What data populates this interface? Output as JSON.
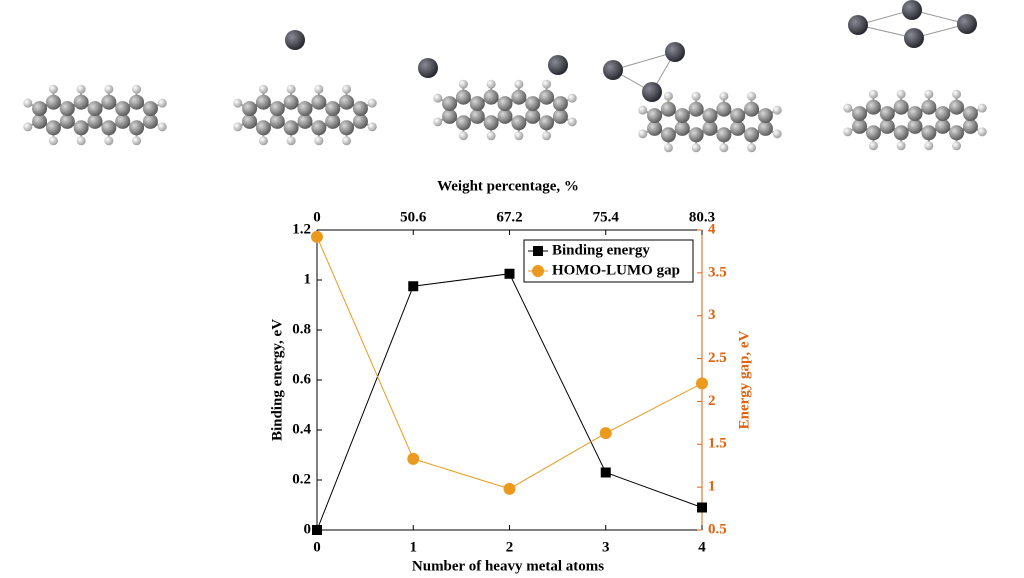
{
  "chart_data": {
    "type": "line",
    "x_label": "Number of heavy metal atoms",
    "x2_label": "Weight percentage, %",
    "y_label": "Binding energy, eV",
    "y2_label": "Energy gap, eV",
    "x": [
      0,
      1,
      2,
      3,
      4
    ],
    "xlim": [
      0,
      4
    ],
    "xticks": [
      0,
      1,
      2,
      3,
      4
    ],
    "x2ticks": [
      {
        "value": 0,
        "label": "0"
      },
      {
        "value": 1,
        "label": "50.6"
      },
      {
        "value": 2,
        "label": "67.2"
      },
      {
        "value": 3,
        "label": "75.4"
      },
      {
        "value": 4,
        "label": "80.3"
      }
    ],
    "ylim": [
      0,
      1.2
    ],
    "yticks": [
      0,
      0.2,
      0.4,
      0.6,
      0.8,
      1,
      1.2
    ],
    "y2lim": [
      0.5,
      4
    ],
    "y2ticks": [
      0.5,
      1,
      1.5,
      2,
      2.5,
      3,
      3.5,
      4
    ],
    "y2_color": "#e0620d",
    "legend": "upper right",
    "series": [
      {
        "name": "Binding energy",
        "color": "#000000",
        "marker": "square",
        "values": [
          0,
          0.975,
          1.025,
          0.23,
          0.09
        ]
      },
      {
        "name": "HOMO-LUMO gap",
        "color": "#ec9a1e",
        "marker": "circle",
        "axis": "y2",
        "values": [
          3.92,
          1.33,
          0.98,
          1.63,
          2.21
        ]
      }
    ]
  }
}
